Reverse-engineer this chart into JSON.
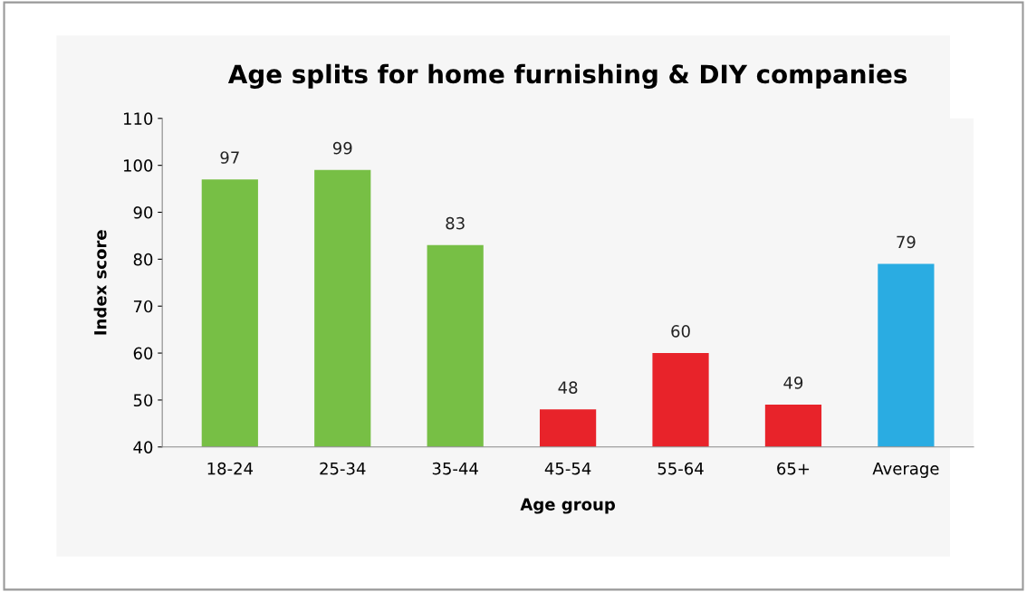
{
  "chart_data": {
    "type": "bar",
    "title": "Age splits for home furnishing & DIY companies",
    "xlabel": "Age group",
    "ylabel": "Index score",
    "categories": [
      "18-24",
      "25-34",
      "35-44",
      "45-54",
      "55-64",
      "65+",
      "Average"
    ],
    "values": [
      97,
      99,
      83,
      48,
      60,
      49,
      79
    ],
    "colors": [
      "#77bf45",
      "#77bf45",
      "#77bf45",
      "#e8232a",
      "#e8232a",
      "#e8232a",
      "#2aace2"
    ],
    "ylim": [
      40,
      110
    ],
    "yticks": [
      40,
      50,
      60,
      70,
      80,
      90,
      100,
      110
    ],
    "data_labels": true,
    "grid": false
  }
}
